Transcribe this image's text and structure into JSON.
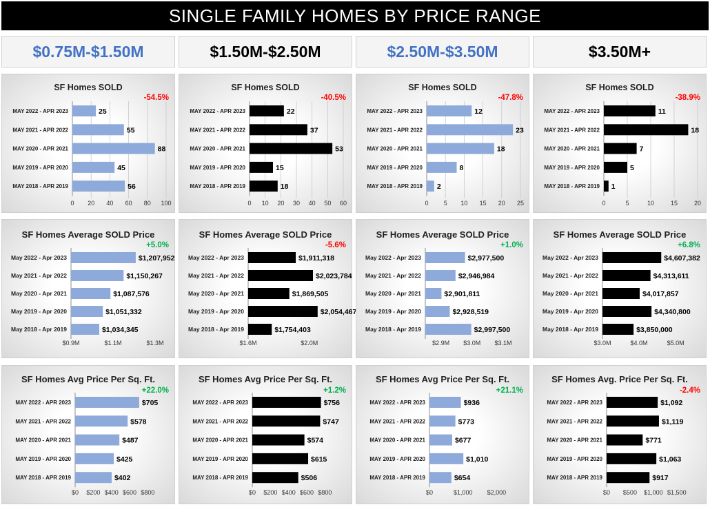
{
  "title": "SINGLE FAMILY HOMES BY PRICE RANGE",
  "colors": {
    "blue_bar": "#8eaadb",
    "black_bar": "#000000",
    "header_blue": "#4472c4",
    "negative": "#ff0000",
    "positive": "#00b050"
  },
  "columns": [
    {
      "label": "$0.75M-$1.50M",
      "color": "#4472c4",
      "bar": "blue"
    },
    {
      "label": "$1.50M-$2.50M",
      "color": "#000000",
      "bar": "black"
    },
    {
      "label": "$2.50M-$3.50M",
      "color": "#4472c4",
      "bar": "blue"
    },
    {
      "label": "$3.50M+",
      "color": "#000000",
      "bar": "black"
    }
  ],
  "chart_data": [
    {
      "type": "bar",
      "row": 0,
      "col": 0,
      "title": "SF Homes SOLD",
      "change": "-54.5%",
      "categories": [
        "MAY 2022 - APR 2023",
        "MAY 2021 - APR 2022",
        "MAY 2020 - APR 2021",
        "MAY 2019 - APR 2020",
        "MAY 2018 - APR 2019"
      ],
      "values": [
        25,
        55,
        88,
        45,
        56
      ],
      "labels": [
        "25",
        "55",
        "88",
        "45",
        "56"
      ],
      "xlim": [
        0,
        100
      ],
      "ticks": [
        0,
        20,
        40,
        60,
        80,
        100
      ],
      "tick_labels": [
        "0",
        "20",
        "40",
        "60",
        "80",
        "100"
      ]
    },
    {
      "type": "bar",
      "row": 0,
      "col": 1,
      "title": "SF Homes SOLD",
      "change": "-40.5%",
      "categories": [
        "MAY 2022 - APR 2023",
        "MAY 2021 - APR 2022",
        "MAY 2020 - APR 2021",
        "MAY 2019 - APR 2020",
        "MAY 2018 - APR 2019"
      ],
      "values": [
        22,
        37,
        53,
        15,
        18
      ],
      "labels": [
        "22",
        "37",
        "53",
        "15",
        "18"
      ],
      "xlim": [
        0,
        60
      ],
      "ticks": [
        0,
        10,
        20,
        30,
        40,
        50,
        60
      ],
      "tick_labels": [
        "0",
        "10",
        "20",
        "30",
        "40",
        "50",
        "60"
      ]
    },
    {
      "type": "bar",
      "row": 0,
      "col": 2,
      "title": "SF Homes SOLD",
      "change": "-47.8%",
      "categories": [
        "MAY 2022 - APR 2023",
        "MAY 2021 - APR 2022",
        "MAY 2020 - APR 2021",
        "MAY 2019 - APR 2020",
        "MAY 2018 - APR 2019"
      ],
      "values": [
        12,
        23,
        18,
        8,
        2
      ],
      "labels": [
        "12",
        "23",
        "18",
        "8",
        "2"
      ],
      "xlim": [
        0,
        25
      ],
      "ticks": [
        0,
        5,
        10,
        15,
        20,
        25
      ],
      "tick_labels": [
        "0",
        "5",
        "10",
        "15",
        "20",
        "25"
      ]
    },
    {
      "type": "bar",
      "row": 0,
      "col": 3,
      "title": "SF Homes SOLD",
      "change": "-38.9%",
      "categories": [
        "MAY 2022 - APR 2023",
        "MAY 2021 - APR 2022",
        "MAY 2020 - APR 2021",
        "MAY 2019 - APR 2020",
        "MAY 2018 - APR 2019"
      ],
      "values": [
        11,
        18,
        7,
        5,
        1
      ],
      "labels": [
        "11",
        "18",
        "7",
        "5",
        "1"
      ],
      "xlim": [
        0,
        20
      ],
      "ticks": [
        0,
        5,
        10,
        15,
        20
      ],
      "tick_labels": [
        "0",
        "5",
        "10",
        "15",
        "20"
      ]
    },
    {
      "type": "bar",
      "row": 1,
      "col": 0,
      "title": "SF Homes Average SOLD Price",
      "change": "+5.0%",
      "categories": [
        "May 2022 - Apr 2023",
        "May 2021 - Apr 2022",
        "May 2020 - Apr 2021",
        "May 2019 - Apr 2020",
        "May 2018 - Apr 2019"
      ],
      "values": [
        1207952,
        1150267,
        1087576,
        1051332,
        1034345
      ],
      "labels": [
        "$1,207,952",
        "$1,150,267",
        "$1,087,576",
        "$1,051,332",
        "$1,034,345"
      ],
      "xlim": [
        900000,
        1300000
      ],
      "ticks": [
        900000,
        1100000,
        1300000
      ],
      "tick_labels": [
        "$0.9M",
        "$1.1M",
        "$1.3M"
      ]
    },
    {
      "type": "bar",
      "row": 1,
      "col": 1,
      "title": "SF Homes Average SOLD Price",
      "change": "-5.6%",
      "categories": [
        "May 2022 - Apr 2023",
        "May 2021 - Apr 2022",
        "May 2020 - Apr 2021",
        "May 2019 - Apr 2020",
        "May 2018 - Apr 2019"
      ],
      "values": [
        1911318,
        2023784,
        1869505,
        2054467,
        1754403
      ],
      "labels": [
        "$1,911,318",
        "$2,023,784",
        "$1,869,505",
        "$2,054,467",
        "$1,754,403"
      ],
      "xlim": [
        1600000,
        2150000
      ],
      "ticks": [
        1600000,
        2000000
      ],
      "tick_labels": [
        "$1.6M",
        "$2.0M"
      ]
    },
    {
      "type": "bar",
      "row": 1,
      "col": 2,
      "title": "SF Homes Average SOLD Price",
      "change": "+1.0%",
      "categories": [
        "May 2022 - Apr 2023",
        "May 2021 - Apr 2022",
        "May 2020 - Apr 2021",
        "May 2019 - Apr 2020",
        "May 2018 - Apr 2019"
      ],
      "values": [
        2977500,
        2946984,
        2901811,
        2928519,
        2997500
      ],
      "labels": [
        "$2,977,500",
        "$2,946,984",
        "$2,901,811",
        "$2,928,519",
        "$2,997,500"
      ],
      "xlim": [
        2850000,
        3120000
      ],
      "ticks": [
        2900000,
        3000000,
        3100000
      ],
      "tick_labels": [
        "$2.9M",
        "$3.0M",
        "$3.1M"
      ]
    },
    {
      "type": "bar",
      "row": 1,
      "col": 3,
      "title": "SF Homes Average SOLD Price",
      "change": "+6.8%",
      "categories": [
        "May 2022 - Apr 2023",
        "May 2021 - Apr 2022",
        "May 2020 - Apr 2021",
        "May 2019 - Apr 2020",
        "May 2018 - Apr 2019"
      ],
      "values": [
        4607382,
        4313611,
        4017857,
        4340800,
        3850000
      ],
      "labels": [
        "$4,607,382",
        "$4,313,611",
        "$4,017,857",
        "$4,340,800",
        "$3,850,000"
      ],
      "xlim": [
        3000000,
        5300000
      ],
      "ticks": [
        3000000,
        4000000,
        5000000
      ],
      "tick_labels": [
        "$3.0M",
        "$4.0M",
        "$5.0M"
      ]
    },
    {
      "type": "bar",
      "row": 2,
      "col": 0,
      "title": "SF Homes Avg Price Per Sq. Ft.",
      "change": "+22.0%",
      "categories": [
        "MAY 2022 - APR 2023",
        "MAY 2021 - APR 2022",
        "MAY 2020 - APR 2021",
        "MAY 2019 - APR 2020",
        "MAY 2018 - APR 2019"
      ],
      "values": [
        705,
        578,
        487,
        425,
        402
      ],
      "labels": [
        "$705",
        "$578",
        "$487",
        "$425",
        "$402"
      ],
      "xlim": [
        0,
        850
      ],
      "ticks": [
        0,
        200,
        400,
        600,
        800
      ],
      "tick_labels": [
        "$0",
        "$200",
        "$400",
        "$600",
        "$800"
      ]
    },
    {
      "type": "bar",
      "row": 2,
      "col": 1,
      "title": "SF Homes Avg Price Per Sq. Ft.",
      "change": "+1.2%",
      "categories": [
        "MAY 2022 - APR 2023",
        "MAY 2021 - APR 2022",
        "MAY 2020 - APR 2021",
        "MAY 2019 - APR 2020",
        "MAY 2018 - APR 2019"
      ],
      "values": [
        756,
        747,
        574,
        615,
        506
      ],
      "labels": [
        "$756",
        "$747",
        "$574",
        "$615",
        "$506"
      ],
      "xlim": [
        0,
        850
      ],
      "ticks": [
        0,
        200,
        400,
        600,
        800
      ],
      "tick_labels": [
        "$0",
        "$200",
        "$400",
        "$600",
        "$800"
      ]
    },
    {
      "type": "bar",
      "row": 2,
      "col": 2,
      "title": "SF Homes Avg Price Per Sq. Ft.",
      "change": "+21.1%",
      "categories": [
        "MAY 2022 - APR 2023",
        "MAY 2021 - APR 2022",
        "MAY 2020 - APR 2021",
        "MAY 2019 - APR 2020",
        "MAY 2018 - APR 2019"
      ],
      "values": [
        936,
        773,
        677,
        1010,
        654
      ],
      "labels": [
        "$936",
        "$773",
        "$677",
        "$1,010",
        "$654"
      ],
      "xlim": [
        0,
        2300
      ],
      "ticks": [
        0,
        1000,
        2000
      ],
      "tick_labels": [
        "$0",
        "$1,000",
        "$2,000"
      ]
    },
    {
      "type": "bar",
      "row": 2,
      "col": 3,
      "title": "SF Homes Avg. Price Per Sq. Ft.",
      "change": "-2.4%",
      "categories": [
        "MAY 2022 - APR 2023",
        "MAY 2021 - APR 2022",
        "MAY 2020 - APR 2021",
        "MAY 2019 - APR 2020",
        "MAY 2018 - APR 2019"
      ],
      "values": [
        1092,
        1119,
        771,
        1063,
        917
      ],
      "labels": [
        "$1,092",
        "$1,119",
        "$771",
        "$1,063",
        "$917"
      ],
      "xlim": [
        0,
        1650
      ],
      "ticks": [
        0,
        500,
        1000,
        1500
      ],
      "tick_labels": [
        "$0",
        "$500",
        "$1,000",
        "$1,500"
      ]
    }
  ]
}
